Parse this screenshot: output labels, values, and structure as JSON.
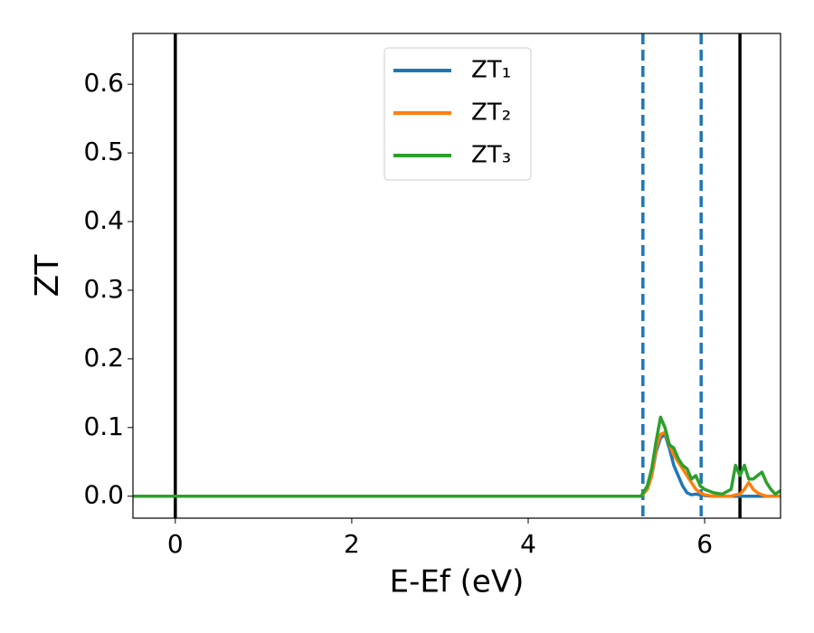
{
  "chart_data": {
    "type": "line",
    "xlabel": "E-Ef (eV)",
    "ylabel": "ZT",
    "x": [
      -0.48,
      5.28,
      5.35,
      5.4,
      5.45,
      5.5,
      5.55,
      5.6,
      5.65,
      5.7,
      5.75,
      5.8,
      5.85,
      5.9,
      5.95,
      6.0,
      6.1,
      6.2,
      6.3,
      6.35,
      6.4,
      6.45,
      6.5,
      6.55,
      6.6,
      6.65,
      6.7,
      6.75,
      6.8,
      6.86
    ],
    "series": [
      {
        "name": "ZT₁",
        "color": "#1f77b4",
        "values": [
          0,
          0,
          0.01,
          0.03,
          0.065,
          0.085,
          0.09,
          0.07,
          0.045,
          0.03,
          0.015,
          0.005,
          0.002,
          0.003,
          0.002,
          0.001,
          0,
          0,
          0,
          0,
          0,
          0,
          0,
          0,
          0,
          0,
          0,
          0,
          0,
          0
        ]
      },
      {
        "name": "ZT₂",
        "color": "#ff7f0e",
        "values": [
          0,
          0,
          0.01,
          0.03,
          0.07,
          0.09,
          0.093,
          0.075,
          0.06,
          0.05,
          0.04,
          0.03,
          0.02,
          0.01,
          0.005,
          0.002,
          0,
          0,
          0,
          0.002,
          0.003,
          0.01,
          0.02,
          0.01,
          0.005,
          0.002,
          0,
          0,
          0,
          0
        ]
      },
      {
        "name": "ZT₃",
        "color": "#2ca02c",
        "values": [
          0,
          0,
          0.015,
          0.04,
          0.08,
          0.115,
          0.1,
          0.075,
          0.07,
          0.055,
          0.045,
          0.04,
          0.025,
          0.03,
          0.015,
          0.01,
          0.005,
          0.003,
          0.01,
          0.045,
          0.03,
          0.045,
          0.025,
          0.025,
          0.03,
          0.035,
          0.02,
          0.01,
          0.003,
          0.008
        ]
      }
    ],
    "vlines": [
      {
        "x": 0,
        "color": "#000000",
        "style": "solid"
      },
      {
        "x": 6.4,
        "color": "#000000",
        "style": "solid"
      },
      {
        "x": 5.3,
        "color": "#1f77b4",
        "style": "dashed"
      },
      {
        "x": 5.96,
        "color": "#1f77b4",
        "style": "dashed"
      }
    ],
    "xlim": [
      -0.48,
      6.86
    ],
    "ylim": [
      -0.032,
      0.674
    ],
    "xticks": [
      0,
      2,
      4,
      6
    ],
    "yticks": [
      {
        "value": 0,
        "label": "0.0"
      },
      0.1,
      0.2,
      0.3,
      0.4,
      0.5,
      0.6
    ],
    "legend": "upper center"
  }
}
